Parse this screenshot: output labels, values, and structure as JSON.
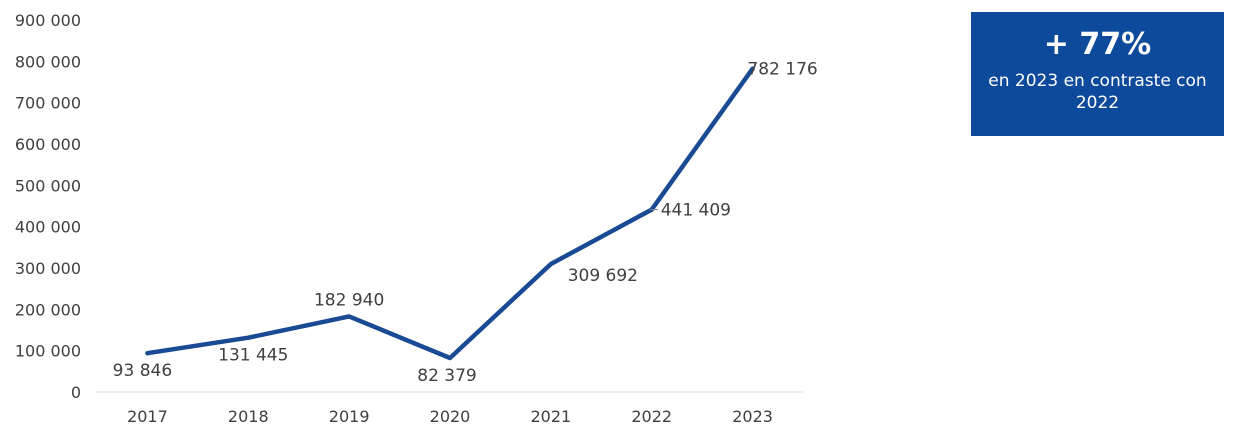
{
  "chart_data": {
    "type": "line",
    "categories": [
      "2017",
      "2018",
      "2019",
      "2020",
      "2021",
      "2022",
      "2023"
    ],
    "series": [
      {
        "values": [
          93846,
          131445,
          182940,
          82379,
          309692,
          441409,
          782176
        ]
      }
    ],
    "data_labels": [
      "93 846",
      "131 445",
      "182 940",
      "82 379",
      "309 692",
      "441 409",
      "782 176"
    ],
    "y_ticks": [
      0,
      100000,
      200000,
      300000,
      400000,
      500000,
      600000,
      700000,
      800000,
      900000
    ],
    "y_tick_labels": [
      "0",
      "100 000",
      "200 000",
      "300 000",
      "400 000",
      "500 000",
      "600 000",
      "700 000",
      "800 000",
      "900 000"
    ],
    "ylim": [
      0,
      900000
    ],
    "grid": false,
    "title": "",
    "xlabel": "",
    "ylabel": ""
  },
  "colors": {
    "line": "#1a4a94",
    "highlight_label": "#7a6228",
    "callout_bg": "#0d4a9b"
  },
  "callout": {
    "headline": "+ 77%",
    "text": "en 2023 en contraste con 2022"
  }
}
